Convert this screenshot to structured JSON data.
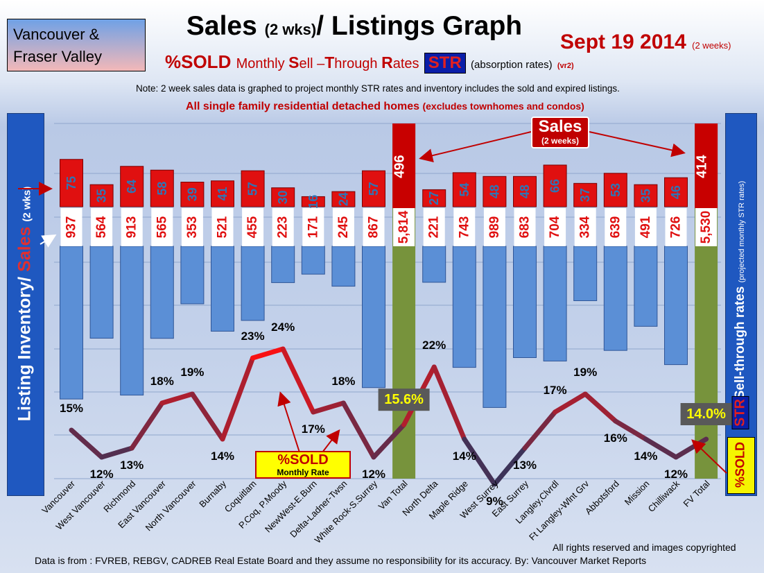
{
  "region": [
    "Vancouver &",
    "Fraser Valley"
  ],
  "title_main": "Sales",
  "title_paren": "(2 wks)",
  "title_rest": "/ Listings Graph",
  "date_main": "Sept 19 2014",
  "date_note": "(2 weeks)",
  "subtitle": {
    "sold": "%SOLD",
    "monthly": "Monthly",
    "s": "S",
    "ell": "ell –",
    "t": "T",
    "hrough": "hrough",
    "r": "R",
    "ates": "ates",
    "str": "STR",
    "absorption": "(absorption rates)",
    "vr": "(vr2)"
  },
  "note": "Note: 2 week sales data is graphed to project monthly STR rates and inventory includes the sold and expired listings.",
  "note2_main": "All single family residential detached homes",
  "note2_paren": "(excludes townhomes and condos)",
  "left_axis": {
    "listing": "Listing Inventory/",
    "sales": "Sales",
    "wks": "(2 wks)"
  },
  "right_axis": {
    "str": "Sell-through rates",
    "paren": "(projected monthly STR rates)",
    "str_box": "STR",
    "sold_box": "%SOLD"
  },
  "sales_bubble": {
    "main": "Sales",
    "sub": "(2 weeks)"
  },
  "sold_legend": {
    "main": "%SOLD",
    "sub": "Monthly Rate"
  },
  "rights": "All rights reserved and  images copyrighted",
  "source": "Data is from : FVREB, REBGV, CADREB Real Estate Board and they assume no responsibility for its accuracy. By: Vancouver Market Reports",
  "colors": {
    "sales": "#e01010",
    "inventory": "#5b8fd6",
    "total": "#77933c",
    "line_high": "#ff1010",
    "line_low": "#1f3864"
  },
  "chart_data": {
    "type": "bar",
    "categories": [
      "Vancouver",
      "West Vancouver",
      "Richmond",
      "East Vancouver",
      "North Vancouver",
      "Burnaby",
      "Coquitlam",
      "P.Coq, P.Moody",
      "NewWest-E.Burn",
      "Delta-Ladner-Twsn",
      "White Rock-S.Surrey",
      "Van Total",
      "North Delta",
      "Maple Ridge",
      "West Surrey",
      "East Surrey",
      "Langley,Clvrdl",
      "Ft Langley-Wlnt Grv",
      "Abbotsford",
      "Mission",
      "Chilliwack",
      "FV Total"
    ],
    "series": [
      {
        "name": "Sales",
        "values": [
          75,
          35,
          64,
          58,
          39,
          41,
          57,
          30,
          16,
          24,
          57,
          496,
          27,
          54,
          48,
          48,
          66,
          37,
          53,
          35,
          46,
          414
        ]
      },
      {
        "name": "Listing Inventory",
        "values": [
          937,
          564,
          913,
          565,
          353,
          521,
          455,
          223,
          171,
          245,
          867,
          5814,
          221,
          743,
          989,
          683,
          704,
          334,
          639,
          491,
          726,
          5530
        ]
      },
      {
        "name": "%SOLD",
        "values": [
          15,
          12,
          13,
          18,
          19,
          14,
          23,
          24,
          17,
          18,
          12,
          15.6,
          22,
          14,
          9,
          13,
          17,
          19,
          16,
          14,
          12,
          14.0
        ]
      }
    ],
    "inventory_labels": [
      "937",
      "564",
      "913",
      "565",
      "353",
      "521",
      "455",
      "223",
      "171",
      "245",
      "867",
      "5,814",
      "221",
      "743",
      "989",
      "683",
      "704",
      "334",
      "639",
      "491",
      "726",
      "5,530"
    ],
    "sold_labels": [
      "15%",
      "12%",
      "13%",
      "18%",
      "19%",
      "14%",
      "23%",
      "24%",
      "17%",
      "18%",
      "12%",
      "15.6%",
      "22%",
      "14%",
      "9%",
      "13%",
      "17%",
      "19%",
      "16%",
      "14%",
      "12%",
      "14.0%"
    ],
    "grid": true
  }
}
